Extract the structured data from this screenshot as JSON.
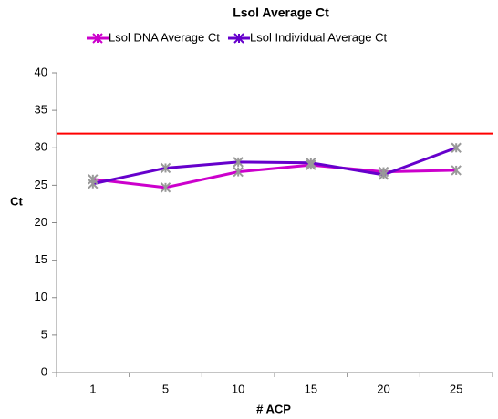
{
  "chart_data": {
    "type": "line",
    "title": "Lsol Average Ct",
    "x_label": "# ACP",
    "y_label": "Ct",
    "categories": [
      "1",
      "5",
      "10",
      "15",
      "20",
      "25"
    ],
    "series": [
      {
        "name": "Lsol DNA Average Ct",
        "color": "#cc00cc",
        "values": [
          25.8,
          24.7,
          26.8,
          27.7,
          26.8,
          27.0
        ]
      },
      {
        "name": "Lsol Individual Average Ct",
        "color": "#6600cc",
        "values": [
          25.2,
          27.3,
          28.1,
          28.0,
          26.4,
          30.0
        ]
      }
    ],
    "reference_line": {
      "value": 31.9,
      "color": "#ff0000"
    },
    "ylim": [
      0,
      40
    ],
    "yticks": [
      0,
      5,
      10,
      15,
      20,
      25,
      30,
      35,
      40
    ],
    "grid": false,
    "legend": "top"
  }
}
